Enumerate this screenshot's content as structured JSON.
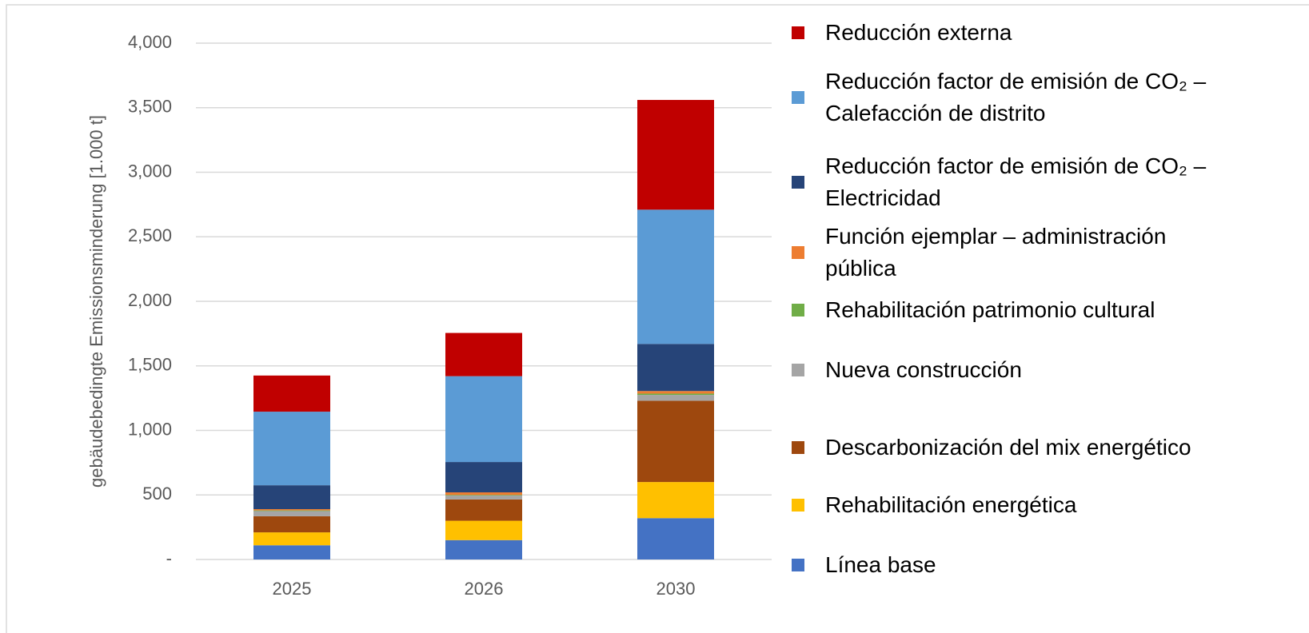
{
  "chart_data": {
    "type": "bar",
    "stacked": true,
    "y_label": "gebäudebedingte Emissionsminderung [1.000 t]",
    "categories": [
      "2025",
      "2026",
      "2030"
    ],
    "ylim": [
      0,
      4000
    ],
    "yticks": [
      {
        "value": 0,
        "label": "-"
      },
      500,
      {
        "value": 1000,
        "label": "1,000"
      },
      {
        "value": 1500,
        "label": "1,500"
      },
      {
        "value": 2000,
        "label": "2,000"
      },
      {
        "value": 2500,
        "label": "2,500"
      },
      {
        "value": 3000,
        "label": "3,000"
      },
      {
        "value": 3500,
        "label": "3,500"
      },
      {
        "value": 4000,
        "label": "4,000"
      }
    ],
    "grid": true,
    "legend": "right",
    "series": [
      {
        "name": "Línea base",
        "color": "#4472c4",
        "values": [
          110,
          150,
          320
        ]
      },
      {
        "name": "Rehabilitación energética",
        "color": "#ffc000",
        "values": [
          100,
          150,
          280
        ]
      },
      {
        "name": "Descarbonización del mix energético",
        "color": "#9e480e",
        "values": [
          125,
          165,
          630
        ]
      },
      {
        "name": "Nueva construcción",
        "color": "#a5a5a5",
        "values": [
          40,
          30,
          45
        ]
      },
      {
        "name": "Rehabilitación patrimonio cultural",
        "color": "#70ad47",
        "values": [
          5,
          5,
          10
        ]
      },
      {
        "name": "Función ejemplar – administración pública",
        "color": "#ed7d31",
        "values": [
          10,
          20,
          20
        ]
      },
      {
        "name": "Reducción factor de emisión de CO₂ – Electricidad",
        "color": "#264478",
        "values": [
          185,
          235,
          365
        ]
      },
      {
        "name": "Reducción factor de emisión de CO₂ – Calefacción de distrito",
        "color": "#5b9bd5",
        "values": [
          570,
          665,
          1040
        ]
      },
      {
        "name": "Reducción externa",
        "color": "#c00000",
        "values": [
          280,
          335,
          850
        ]
      }
    ]
  }
}
